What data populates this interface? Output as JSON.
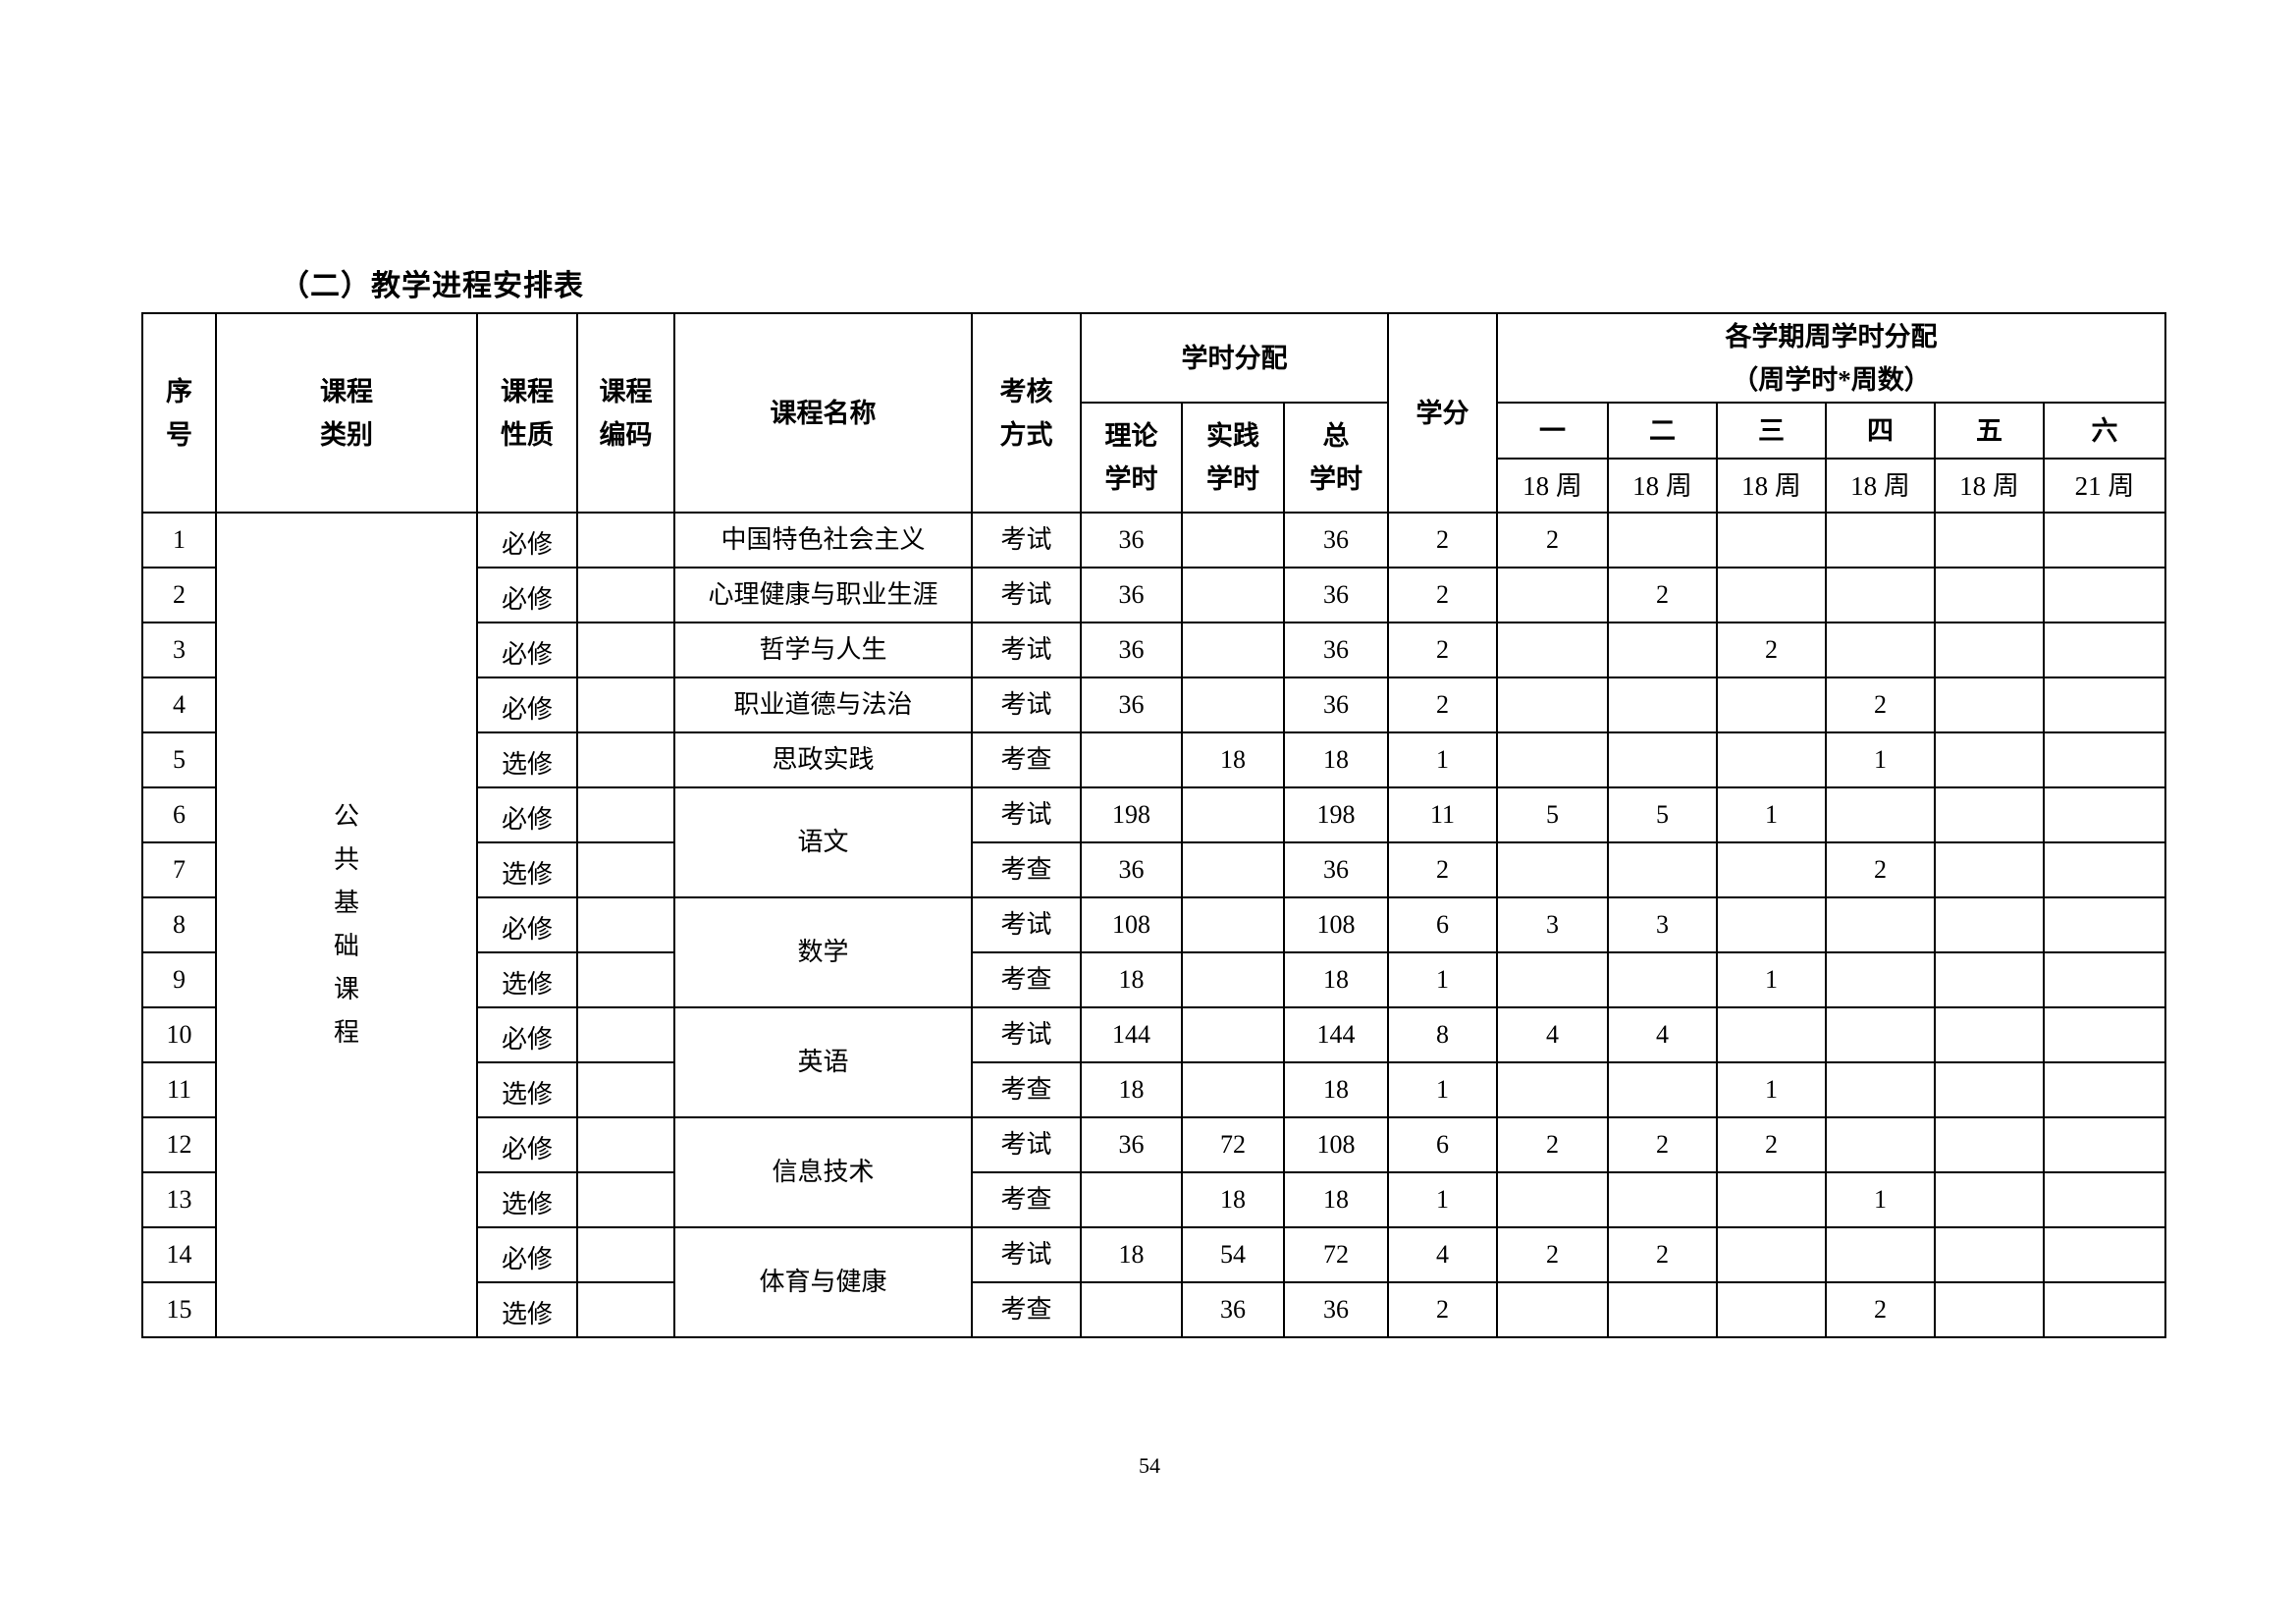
{
  "title": "（二）教学进程安排表",
  "header": {
    "seq": [
      "序",
      "号"
    ],
    "category": [
      "课程",
      "类别"
    ],
    "nature": [
      "课程",
      "性质"
    ],
    "code": [
      "课程",
      "编码"
    ],
    "course_name": "课程名称",
    "assessment": [
      "考核",
      "方式"
    ],
    "hours_group": "学时分配",
    "theory": [
      "理论",
      "学时"
    ],
    "practice": [
      "实践",
      "学时"
    ],
    "total": [
      "总",
      "学时"
    ],
    "credits": "学分",
    "semester_group": [
      "各学期周学时分配",
      "（周学时*周数）"
    ],
    "semesters": [
      "一",
      "二",
      "三",
      "四",
      "五",
      "六"
    ],
    "weeks": [
      "18 周",
      "18 周",
      "18 周",
      "18 周",
      "18 周",
      "21 周"
    ]
  },
  "category_label": "公共基础课程",
  "rows": [
    {
      "seq": "1",
      "nature": "必修",
      "code": "",
      "name": "中国特色社会主义",
      "span": 1,
      "assess": "考试",
      "theory": "36",
      "practice": "",
      "total": "36",
      "credits": "2",
      "sem": [
        "2",
        "",
        "",
        "",
        "",
        ""
      ]
    },
    {
      "seq": "2",
      "nature": "必修",
      "code": "",
      "name": "心理健康与职业生涯",
      "span": 1,
      "assess": "考试",
      "theory": "36",
      "practice": "",
      "total": "36",
      "credits": "2",
      "sem": [
        "",
        "2",
        "",
        "",
        "",
        ""
      ]
    },
    {
      "seq": "3",
      "nature": "必修",
      "code": "",
      "name": "哲学与人生",
      "span": 1,
      "assess": "考试",
      "theory": "36",
      "practice": "",
      "total": "36",
      "credits": "2",
      "sem": [
        "",
        "",
        "2",
        "",
        "",
        ""
      ]
    },
    {
      "seq": "4",
      "nature": "必修",
      "code": "",
      "name": "职业道德与法治",
      "span": 1,
      "assess": "考试",
      "theory": "36",
      "practice": "",
      "total": "36",
      "credits": "2",
      "sem": [
        "",
        "",
        "",
        "2",
        "",
        ""
      ]
    },
    {
      "seq": "5",
      "nature": "选修",
      "code": "",
      "name": "思政实践",
      "span": 1,
      "assess": "考查",
      "theory": "",
      "practice": "18",
      "total": "18",
      "credits": "1",
      "sem": [
        "",
        "",
        "",
        "1",
        "",
        ""
      ]
    },
    {
      "seq": "6",
      "nature": "必修",
      "code": "",
      "name": "语文",
      "span": 2,
      "assess": "考试",
      "theory": "198",
      "practice": "",
      "total": "198",
      "credits": "11",
      "sem": [
        "5",
        "5",
        "1",
        "",
        "",
        ""
      ]
    },
    {
      "seq": "7",
      "nature": "选修",
      "code": "",
      "name": null,
      "span": 0,
      "assess": "考查",
      "theory": "36",
      "practice": "",
      "total": "36",
      "credits": "2",
      "sem": [
        "",
        "",
        "",
        "2",
        "",
        ""
      ]
    },
    {
      "seq": "8",
      "nature": "必修",
      "code": "",
      "name": "数学",
      "span": 2,
      "assess": "考试",
      "theory": "108",
      "practice": "",
      "total": "108",
      "credits": "6",
      "sem": [
        "3",
        "3",
        "",
        "",
        "",
        ""
      ]
    },
    {
      "seq": "9",
      "nature": "选修",
      "code": "",
      "name": null,
      "span": 0,
      "assess": "考查",
      "theory": "18",
      "practice": "",
      "total": "18",
      "credits": "1",
      "sem": [
        "",
        "",
        "1",
        "",
        "",
        ""
      ]
    },
    {
      "seq": "10",
      "nature": "必修",
      "code": "",
      "name": "英语",
      "span": 2,
      "assess": "考试",
      "theory": "144",
      "practice": "",
      "total": "144",
      "credits": "8",
      "sem": [
        "4",
        "4",
        "",
        "",
        "",
        ""
      ]
    },
    {
      "seq": "11",
      "nature": "选修",
      "code": "",
      "name": null,
      "span": 0,
      "assess": "考查",
      "theory": "18",
      "practice": "",
      "total": "18",
      "credits": "1",
      "sem": [
        "",
        "",
        "1",
        "",
        "",
        ""
      ]
    },
    {
      "seq": "12",
      "nature": "必修",
      "code": "",
      "name": "信息技术",
      "span": 2,
      "assess": "考试",
      "theory": "36",
      "practice": "72",
      "total": "108",
      "credits": "6",
      "sem": [
        "2",
        "2",
        "2",
        "",
        "",
        ""
      ]
    },
    {
      "seq": "13",
      "nature": "选修",
      "code": "",
      "name": null,
      "span": 0,
      "assess": "考查",
      "theory": "",
      "practice": "18",
      "total": "18",
      "credits": "1",
      "sem": [
        "",
        "",
        "",
        "1",
        "",
        ""
      ]
    },
    {
      "seq": "14",
      "nature": "必修",
      "code": "",
      "name": "体育与健康",
      "span": 2,
      "assess": "考试",
      "theory": "18",
      "practice": "54",
      "total": "72",
      "credits": "4",
      "sem": [
        "2",
        "2",
        "",
        "",
        "",
        ""
      ]
    },
    {
      "seq": "15",
      "nature": "选修",
      "code": "",
      "name": null,
      "span": 0,
      "assess": "考查",
      "theory": "",
      "practice": "36",
      "total": "36",
      "credits": "2",
      "sem": [
        "",
        "",
        "",
        "2",
        "",
        ""
      ]
    }
  ],
  "page_number": "54"
}
